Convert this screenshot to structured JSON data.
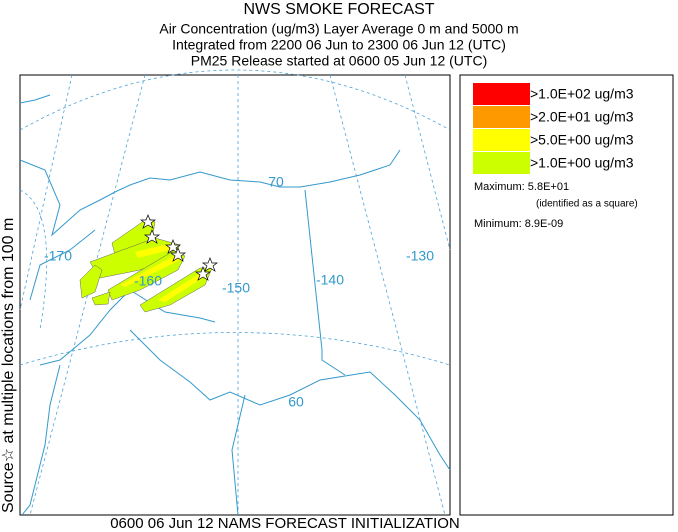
{
  "title": "NWS SMOKE FORECAST",
  "subtitle_lines": [
    "Air Concentration (ug/m3) Layer Average    0 m and  5000 m",
    "Integrated from 2200 06 Jun to 2300 06 Jun 12 (UTC)",
    "PM25 Release started at 0600 05 Jun 12 (UTC)"
  ],
  "side_label": "Source☆  at multiple locations    from   100 m",
  "map": {
    "labels": [
      "-170",
      "-160",
      "-150",
      "-140",
      "-130",
      "70",
      "60"
    ]
  },
  "legend": {
    "entries": [
      {
        "label": ">1.0E+02 ug/m3",
        "color": "#ff0000"
      },
      {
        "label": ">2.0E+01 ug/m3",
        "color": "#ff9900"
      },
      {
        "label": ">5.0E+00 ug/m3",
        "color": "#ffff00"
      },
      {
        "label": ">1.0E+00 ug/m3",
        "color": "#ccff00"
      }
    ],
    "maximum": "Maximum: 5.8E+01",
    "max_note": "(identified as a square)",
    "minimum": "Minimum: 8.9E-09"
  },
  "footer": "0600 06 Jun 12 NAMS FORECAST INITIALIZATION"
}
